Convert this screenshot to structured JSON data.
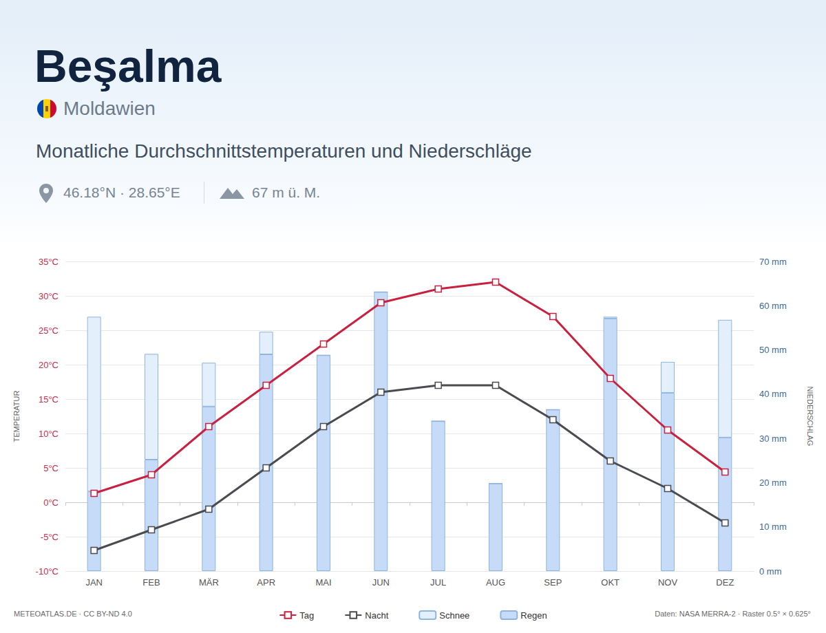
{
  "chart_data": {
    "type": "bar_line",
    "title": "Beşalma",
    "subtitle": "Moldawien",
    "description": "Monatliche Durchschnittstemperaturen und Niederschläge",
    "location": "46.18°N · 28.65°E",
    "elevation": "67 m ü. M.",
    "credit": "METEOATLAS.DE · CC BY-ND 4.0",
    "source": "Daten: NASA MERRA-2 · Raster 0.5° × 0.625°",
    "ylabel": "TEMPERATUR",
    "y2label": "NIEDERSCHLAG",
    "categories": [
      "JAN",
      "FEB",
      "MÄR",
      "APR",
      "MAI",
      "JUN",
      "JUL",
      "AUG",
      "SEP",
      "OKT",
      "NOV",
      "DEZ"
    ],
    "series": [
      {
        "name": "Tag",
        "type": "line",
        "color": "#c8203f",
        "marker": "square",
        "line_style": "solid",
        "values": [
          1.3,
          4.0,
          11.0,
          17.0,
          23.0,
          29.0,
          31.0,
          32.0,
          27.0,
          18.0,
          10.5,
          4.4
        ]
      },
      {
        "name": "Nacht",
        "type": "line",
        "color": "#4a4b50",
        "marker": "square",
        "line_style": "solid",
        "values": [
          -7.0,
          -4.0,
          -1.0,
          5.0,
          11.0,
          16.0,
          17.0,
          17.0,
          12.0,
          6.0,
          2.0,
          -3.0
        ]
      },
      {
        "name": "Schnee",
        "type": "bar",
        "axis": "y2",
        "color": "#e4effc",
        "values": [
          39.5,
          23.9,
          9.9,
          5.1,
          0,
          0,
          0,
          0,
          0,
          0.4,
          7.0,
          26.6
        ]
      },
      {
        "name": "Regen",
        "type": "bar",
        "axis": "y2",
        "color": "#c5dbf7",
        "values": [
          18.0,
          25.2,
          37.2,
          49.0,
          48.8,
          63.1,
          33.9,
          19.8,
          36.5,
          57.1,
          40.3,
          30.2
        ]
      }
    ],
    "ylim": [
      -10,
      35
    ],
    "yticks": [
      {
        "value": -10,
        "label": "-10°C"
      },
      {
        "value": -5,
        "label": "-5°C"
      },
      {
        "value": 0,
        "label": "0°C"
      },
      {
        "value": 5,
        "label": "5°C"
      },
      {
        "value": 10,
        "label": "10°C"
      },
      {
        "value": 15,
        "label": "15°C"
      },
      {
        "value": 20,
        "label": "20°C"
      },
      {
        "value": 25,
        "label": "25°C"
      },
      {
        "value": 30,
        "label": "30°C"
      },
      {
        "value": 35,
        "label": "35°C"
      }
    ],
    "y2lim": [
      0,
      70
    ],
    "y2ticks": [
      {
        "value": 0,
        "label": "0 mm"
      },
      {
        "value": 10,
        "label": "10 mm"
      },
      {
        "value": 20,
        "label": "20 mm"
      },
      {
        "value": 30,
        "label": "30 mm"
      },
      {
        "value": 40,
        "label": "40 mm"
      },
      {
        "value": 50,
        "label": "50 mm"
      },
      {
        "value": 60,
        "label": "60 mm"
      },
      {
        "value": 70,
        "label": "70 mm"
      }
    ],
    "stacked": true,
    "grid": true,
    "legend": "bottom"
  }
}
